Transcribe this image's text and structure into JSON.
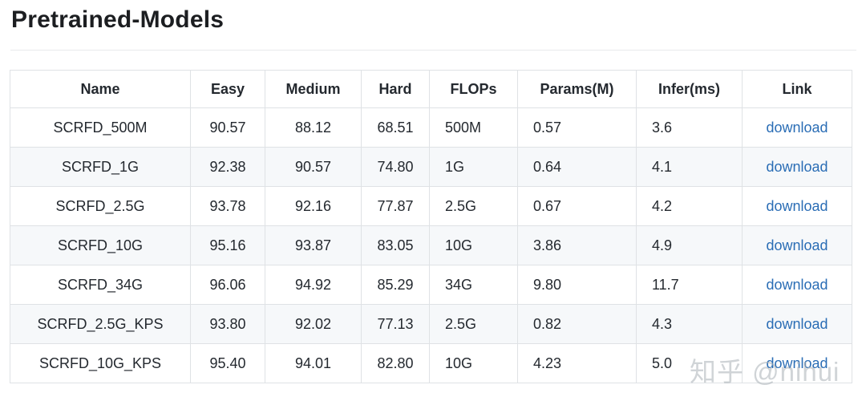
{
  "page": {
    "title": "Pretrained-Models",
    "watermark": "知乎 @nihui"
  },
  "table": {
    "columns": [
      {
        "key": "name",
        "label": "Name"
      },
      {
        "key": "easy",
        "label": "Easy"
      },
      {
        "key": "medium",
        "label": "Medium"
      },
      {
        "key": "hard",
        "label": "Hard"
      },
      {
        "key": "flops",
        "label": "FLOPs"
      },
      {
        "key": "params",
        "label": "Params(M)"
      },
      {
        "key": "infer",
        "label": "Infer(ms)"
      },
      {
        "key": "link",
        "label": "Link"
      }
    ],
    "rows": [
      {
        "name": "SCRFD_500M",
        "easy": "90.57",
        "medium": "88.12",
        "hard": "68.51",
        "flops": "500M",
        "params": "0.57",
        "infer": "3.6",
        "link": "download"
      },
      {
        "name": "SCRFD_1G",
        "easy": "92.38",
        "medium": "90.57",
        "hard": "74.80",
        "flops": "1G",
        "params": "0.64",
        "infer": "4.1",
        "link": "download"
      },
      {
        "name": "SCRFD_2.5G",
        "easy": "93.78",
        "medium": "92.16",
        "hard": "77.87",
        "flops": "2.5G",
        "params": "0.67",
        "infer": "4.2",
        "link": "download"
      },
      {
        "name": "SCRFD_10G",
        "easy": "95.16",
        "medium": "93.87",
        "hard": "83.05",
        "flops": "10G",
        "params": "3.86",
        "infer": "4.9",
        "link": "download"
      },
      {
        "name": "SCRFD_34G",
        "easy": "96.06",
        "medium": "94.92",
        "hard": "85.29",
        "flops": "34G",
        "params": "9.80",
        "infer": "11.7",
        "link": "download"
      },
      {
        "name": "SCRFD_2.5G_KPS",
        "easy": "93.80",
        "medium": "92.02",
        "hard": "77.13",
        "flops": "2.5G",
        "params": "0.82",
        "infer": "4.3",
        "link": "download"
      },
      {
        "name": "SCRFD_10G_KPS",
        "easy": "95.40",
        "medium": "94.01",
        "hard": "82.80",
        "flops": "10G",
        "params": "4.23",
        "infer": "5.0",
        "link": "download"
      }
    ],
    "colors": {
      "link_blue": "#2a6db5",
      "stripe_bg": "#f6f8fa",
      "border": "#dfe2e5",
      "text": "#24292f"
    }
  }
}
